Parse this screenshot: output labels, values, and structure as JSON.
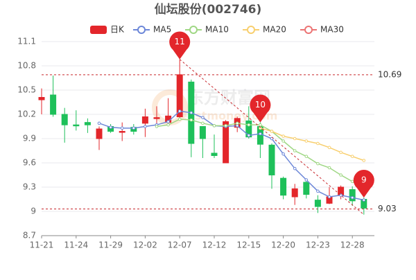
{
  "chart_data": {
    "type": "candlestick",
    "title": "仙坛股份(002746)",
    "watermark": "东方财富网",
    "watermark_sub": "eastmoney.com",
    "categories": [
      "11-21",
      null,
      null,
      "11-24",
      null,
      null,
      "11-29",
      null,
      null,
      "12-02",
      null,
      null,
      "12-07",
      null,
      null,
      "12-12",
      null,
      null,
      "12-15",
      null,
      null,
      "12-20",
      null,
      null,
      "12-23",
      null,
      null,
      "12-28",
      null
    ],
    "candles": {
      "name": "日K",
      "up_color": "#e3262b",
      "down_color": "#1ec05a",
      "open": [
        10.38,
        10.44,
        10.2,
        10.07,
        10.1,
        9.9,
        10.05,
        9.98,
        10.04,
        10.09,
        10.15,
        10.1,
        10.17,
        10.6,
        10.05,
        9.72,
        9.6,
        10.04,
        10.12,
        10.05,
        9.82,
        9.41,
        9.18,
        9.36,
        9.14,
        9.1,
        9.2,
        9.27,
        9.15
      ],
      "close": [
        10.41,
        10.2,
        10.07,
        10.06,
        10.07,
        10.02,
        9.99,
        9.99,
        9.99,
        10.17,
        10.16,
        10.18,
        10.69,
        9.84,
        9.9,
        9.69,
        10.11,
        10.15,
        9.92,
        9.83,
        9.45,
        9.2,
        9.28,
        9.21,
        9.06,
        9.18,
        9.3,
        9.13,
        9.04
      ],
      "high": [
        10.52,
        10.68,
        10.28,
        10.25,
        10.15,
        10.05,
        10.08,
        10.1,
        10.08,
        10.27,
        10.3,
        10.4,
        10.88,
        10.63,
        10.05,
        9.95,
        10.13,
        10.17,
        10.3,
        10.1,
        9.84,
        9.43,
        9.34,
        9.37,
        9.2,
        9.3,
        9.32,
        9.31,
        9.17
      ],
      "low": [
        10.2,
        10.17,
        9.85,
        10.0,
        9.97,
        9.76,
        9.97,
        9.87,
        9.95,
        9.92,
        10.07,
        10.06,
        10.15,
        9.67,
        9.66,
        9.66,
        9.6,
        9.98,
        9.9,
        9.66,
        9.28,
        9.15,
        9.08,
        9.16,
        8.98,
        9.09,
        9.15,
        9.07,
        8.96
      ]
    },
    "series": [
      {
        "name": "MA5",
        "color": "#6c87d8",
        "values": [
          null,
          null,
          null,
          null,
          null,
          10.09,
          10.04,
          10.03,
          10.03,
          10.05,
          10.07,
          10.11,
          10.24,
          10.22,
          10.16,
          10.06,
          10.05,
          10.06,
          9.94,
          9.96,
          9.9,
          9.71,
          9.53,
          9.39,
          9.25,
          9.18,
          9.2,
          9.17,
          9.14
        ]
      },
      {
        "name": "MA10",
        "color": "#9fd784",
        "values": [
          null,
          null,
          null,
          null,
          null,
          null,
          null,
          null,
          null,
          null,
          10.05,
          10.07,
          10.14,
          10.13,
          10.09,
          10.06,
          10.06,
          10.09,
          10.07,
          10.07,
          9.99,
          9.87,
          9.75,
          9.68,
          9.59,
          9.54,
          9.45,
          9.37,
          9.28
        ]
      },
      {
        "name": "MA20",
        "color": "#f8cf6e",
        "values": [
          null,
          null,
          null,
          null,
          null,
          null,
          null,
          null,
          null,
          null,
          null,
          null,
          null,
          null,
          null,
          null,
          null,
          null,
          null,
          10.03,
          9.99,
          9.93,
          9.9,
          9.87,
          9.84,
          9.79,
          9.73,
          9.68,
          9.63
        ]
      },
      {
        "name": "MA30",
        "color": "#ec7474",
        "values": [
          null,
          null,
          null,
          null,
          null,
          null,
          null,
          null,
          null,
          null,
          null,
          null,
          null,
          null,
          null,
          null,
          null,
          null,
          null,
          null,
          null,
          null,
          null,
          null,
          null,
          null,
          null,
          null,
          null
        ]
      }
    ],
    "ref_lines": [
      {
        "value": 10.69,
        "color": "#c8262b"
      },
      {
        "value": 9.03,
        "color": "#c8262b"
      }
    ],
    "annotations": [
      {
        "text": "11",
        "at": 12
      },
      {
        "text": "10",
        "at": 19
      },
      {
        "text": "9",
        "at": 28
      }
    ],
    "ylim": [
      8.7,
      11.1
    ],
    "yticks": [
      8.7,
      9,
      9.3,
      9.6,
      9.9,
      10.2,
      10.5,
      10.8,
      11.1
    ],
    "grid": true
  }
}
